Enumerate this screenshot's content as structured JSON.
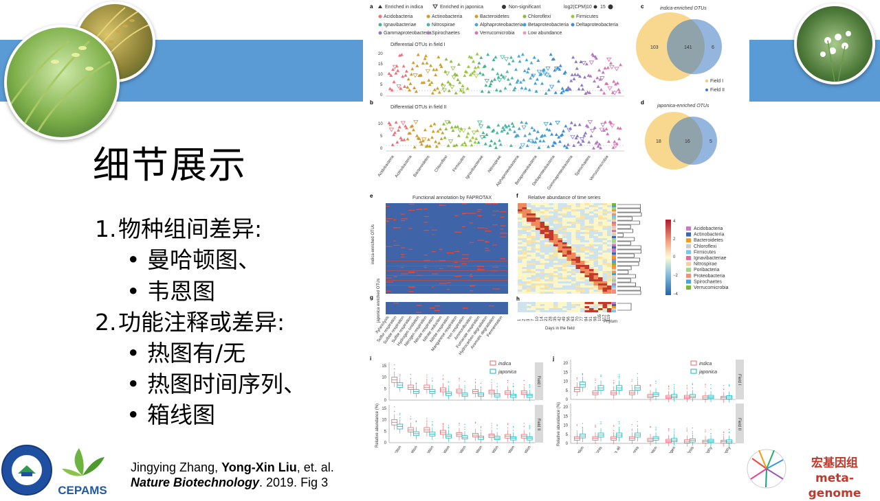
{
  "slide": {
    "title": "细节展示",
    "items": [
      {
        "num": "1.",
        "text": "物种组间差异:",
        "subs": [
          "曼哈顿图、",
          "韦恩图"
        ]
      },
      {
        "num": "2.",
        "text": "功能注释或差异:",
        "subs": [
          "热图有/无",
          "热图时间序列、",
          "箱线图"
        ]
      }
    ],
    "citation": {
      "line1_pre": "Jingying Zhang, ",
      "line1_bold": "Yong-Xin Liu",
      "line1_post": ", et. al.",
      "journal": "Nature Biotechnology",
      "year_fig": ". 2019. Fig 3"
    },
    "logo_cepams": "CEPAMS",
    "brand_cn": "宏基因组",
    "brand_en": "meta-genome",
    "colors": {
      "band": "#5b9bd5",
      "brand": "#c0392b"
    }
  },
  "figure": {
    "panel_a": {
      "label": "a",
      "legend_top": [
        "Enriched in indica",
        "Enriched in japonica",
        "Non-significant",
        "log2(CPM)",
        "10",
        "15"
      ],
      "phyla": [
        "Acidobacteria",
        "Actinobacteria",
        "Bacteroidetes",
        "Chloroflexi",
        "Firmicutes",
        "Ignavibacteriae",
        "Nitrospirae",
        "Alphaproteobacteria",
        "Betaproteobacteria",
        "Deltaproteobacteria",
        "Gammaproteobacteria",
        "Spirochaetes",
        "Verrucomicrobia",
        "Low abundance"
      ],
      "title": "Differential OTUs in field I",
      "yticks": [
        "20",
        "15",
        "10",
        "5",
        "0"
      ]
    },
    "panel_b": {
      "label": "b",
      "title": "Differential OTUs in field II",
      "yticks": [
        "10",
        "5",
        "0"
      ],
      "xlabels": [
        "Acidobacteria",
        "Actinobacteria",
        "Bacteroidetes",
        "Chloroflexi",
        "Firmicutes",
        "Ignavibacteriae",
        "Nitrospirae",
        "Alphaproteobacteria",
        "Betaproteobacteria",
        "Deltaproteobacteria",
        "Gammaproteobacteria",
        "Spirochaetes",
        "Verrucomicrobia"
      ]
    },
    "panel_c": {
      "label": "c",
      "title": "indica-enriched OTUs",
      "left": "103",
      "mid": "141",
      "right": "6",
      "legend": [
        "Field I",
        "Field II"
      ]
    },
    "panel_d": {
      "label": "d",
      "title": "japonica-enriched OTUs",
      "left": "18",
      "mid": "16",
      "right": "5"
    },
    "panel_e": {
      "label": "e",
      "title": "Functional annotation by FAPROTAX",
      "ylabel": "indica-enriched OTUs"
    },
    "panel_f": {
      "label": "f",
      "title": "Relative abundance of time series"
    },
    "panel_g": {
      "label": "g",
      "ylabel": "japonica enriched OTUs",
      "xlabels": [
        "Xylanolysis",
        "Sulfur respiration",
        "Sulfate respiration",
        "Sulfite respiration",
        "Hydrogen oxidation",
        "Nitrogen respiration",
        "Nitrate respiration",
        "Nitrate reduction",
        "Nitrite respiration",
        "Manganese respiration",
        "Iron respiration",
        "Ammonification",
        "Fumarate respiration",
        "Hydrocarbon degradation",
        "Aromatic degradation",
        "Fermentation"
      ]
    },
    "panel_h": {
      "label": "h",
      "xlabel": "Days in the field",
      "days": [
        "1",
        "2",
        "3",
        "7",
        "10",
        "14",
        "21",
        "28",
        "35",
        "42",
        "49",
        "56",
        "63",
        "70",
        "77",
        "84",
        "91",
        "98",
        "105",
        "112",
        "119"
      ],
      "phylum_label": "Phylum"
    },
    "heat_legend": {
      "ticks": [
        "4",
        "2",
        "0",
        "−2",
        "−4"
      ],
      "phyla": [
        "Acidobacteria",
        "Actinobacteria",
        "Bacteroidetes",
        "Chloroflexi",
        "Firmicutes",
        "Ignavibacteriae",
        "Nitrospirae",
        "Poribacteria",
        "Proteobacteria",
        "Spirochaetes",
        "Verrucomicrobia"
      ],
      "colors": [
        "#c77bbd",
        "#3a67b0",
        "#f29b21",
        "#cccccc",
        "#7cc4ea",
        "#df6f9a",
        "#f2d0a8",
        "#a3d38c",
        "#f08f7a",
        "#4aa3d0",
        "#7ab83d"
      ]
    },
    "panel_i": {
      "label": "i",
      "legend": [
        "indica",
        "japonica"
      ],
      "ylabel": "Relative abundance (%)",
      "yticks_top": [
        "15",
        "10",
        "5",
        "0"
      ],
      "yticks_bot": [
        "15",
        "10",
        "5",
        "0"
      ],
      "facets": [
        "Field I",
        "Field II"
      ],
      "xlabels": [
        "Nitrate reduction",
        "Nitrogen respiration",
        "Nitrate respiration",
        "Hydrogen oxidation",
        "Iron respiration",
        "Nitrite respiration",
        "Fumarate respiration",
        "Nitrite ammonification",
        "Nitrate ammonification"
      ],
      "medians_top_indica": [
        9.5,
        6,
        6,
        4.8,
        4.2,
        4,
        3.8,
        3.5,
        3.5
      ],
      "medians_top_japonica": [
        7,
        4,
        4,
        3,
        2.5,
        2.5,
        2.3,
        2,
        2
      ],
      "medians_bot_indica": [
        9.5,
        6,
        6,
        4.8,
        3.8,
        3.5,
        3.2,
        3,
        3
      ],
      "medians_bot_japonica": [
        7.5,
        4.2,
        4,
        3,
        2.5,
        2.3,
        2.2,
        2,
        2
      ]
    },
    "panel_j": {
      "label": "j",
      "legend": [
        "indica",
        "japonica"
      ],
      "ylabel": "Relative abundance (%)",
      "yticks_top": [
        "20",
        "15",
        "10",
        "5",
        "0"
      ],
      "yticks_bot": [
        "20",
        "15",
        "10",
        "5",
        "0"
      ],
      "facets": [
        "Field I",
        "Field II"
      ],
      "xlabels": [
        "Hydrocarbon degradation",
        "Animal parasites or symbionts",
        "Human pathogens all",
        "Human pathogens pneumonia",
        "Nitrogen fixation",
        "Plant pathogen",
        "Ureolysis",
        "Methylotrophy",
        "Methanotrophy"
      ],
      "medians_top_indica": [
        6,
        4,
        4,
        4,
        2,
        1.5,
        1.5,
        1.2,
        1
      ],
      "medians_top_japonica": [
        9,
        7,
        7,
        7,
        3,
        2,
        2,
        1.5,
        1.3
      ],
      "medians_bot_indica": [
        3,
        3,
        3,
        3,
        2,
        1.5,
        1.2,
        1,
        1
      ],
      "medians_bot_japonica": [
        4.5,
        5,
        5,
        5,
        3,
        2,
        1.8,
        1.5,
        1.2
      ]
    }
  }
}
